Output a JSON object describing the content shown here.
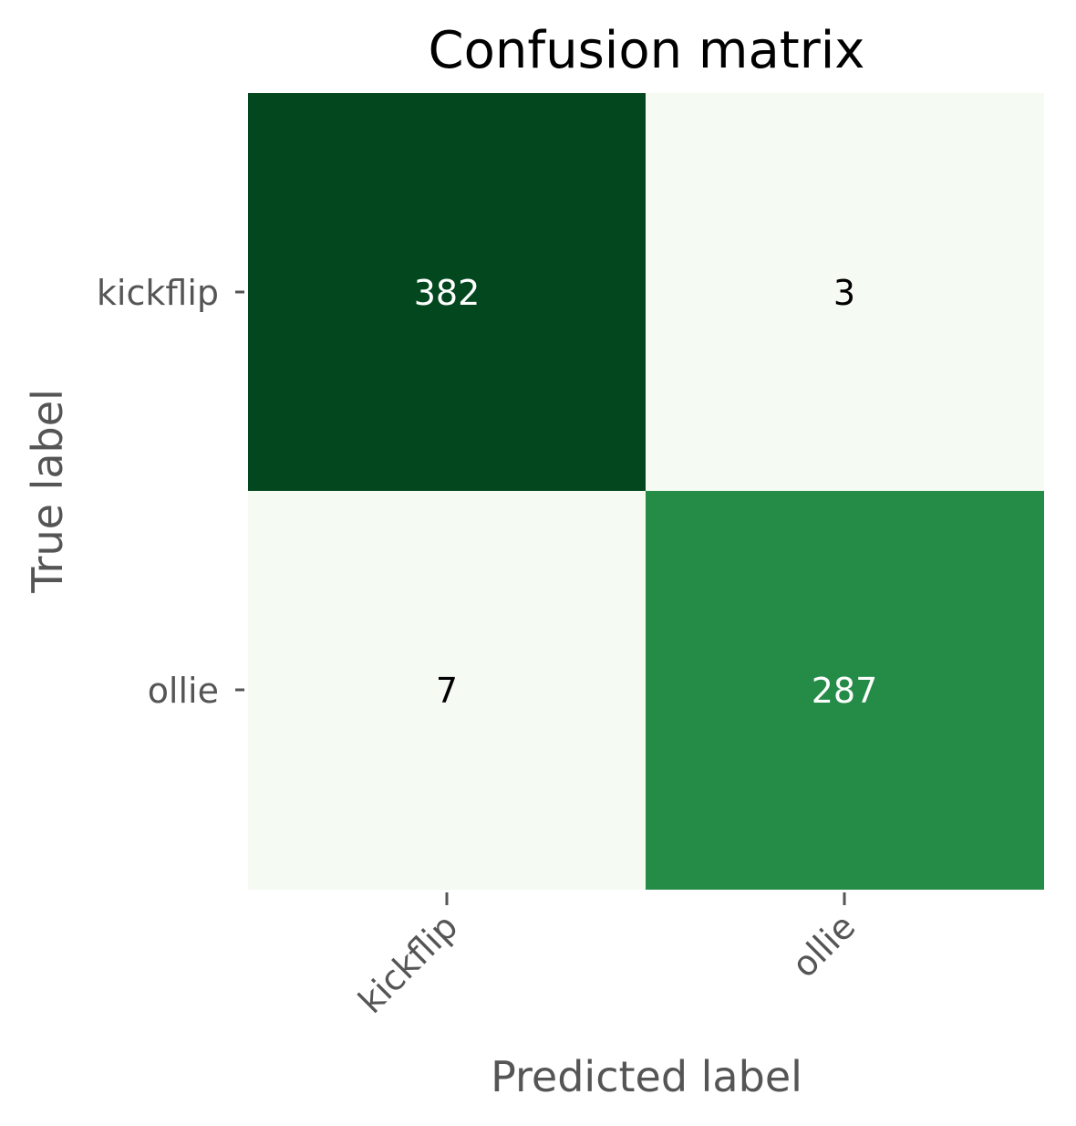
{
  "chart_data": {
    "type": "heatmap",
    "title": "Confusion matrix",
    "xlabel": "Predicted label",
    "ylabel": "True label",
    "x_categories": [
      "kickflip",
      "ollie"
    ],
    "y_categories": [
      "kickflip",
      "ollie"
    ],
    "values": [
      [
        382,
        3
      ],
      [
        7,
        287
      ]
    ],
    "colormap": "Greens",
    "value_range": [
      3,
      382
    ],
    "colorbar": false,
    "grid": false,
    "cell_colors": [
      [
        "#02471d",
        "#f5fbf3"
      ],
      [
        "#f5fbf3",
        "#258c48"
      ]
    ],
    "annotation_colors": [
      [
        "#ffffff",
        "#000000"
      ],
      [
        "#000000",
        "#ffffff"
      ]
    ],
    "label_color": "#555555"
  }
}
